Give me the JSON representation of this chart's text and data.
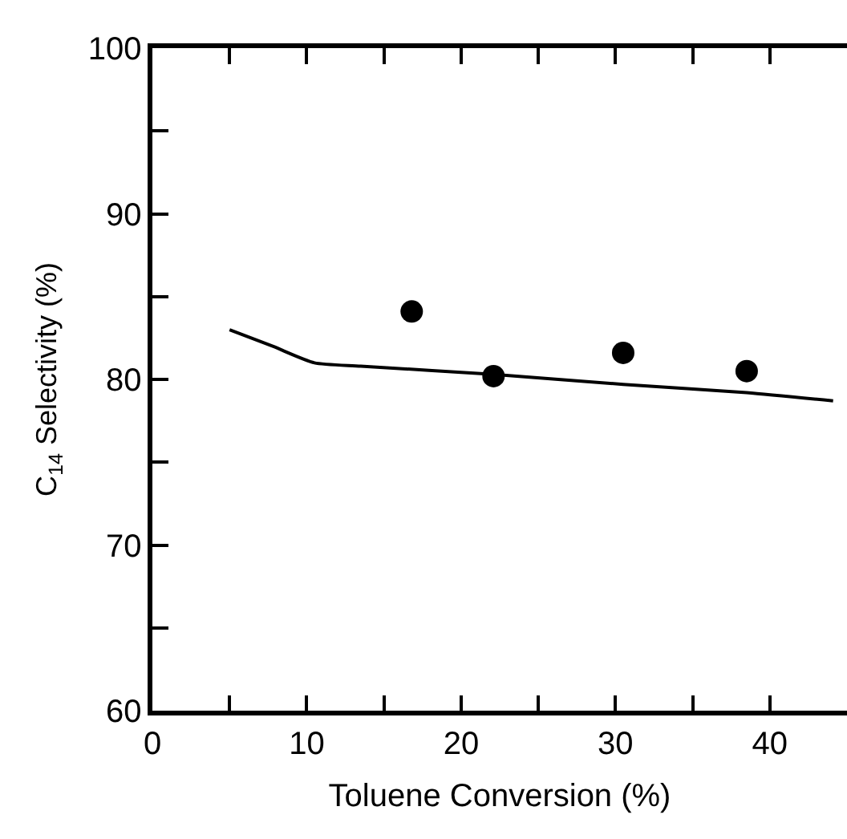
{
  "chart_data": {
    "type": "scatter",
    "xlabel": "Toluene Conversion (%)",
    "ylabel": "C$_{14}$ Selectivity (%)",
    "xlim": [
      0,
      45
    ],
    "ylim": [
      60,
      100
    ],
    "xticks": [
      0,
      {
        "value": 5,
        "label": null
      },
      10,
      {
        "value": 15,
        "label": null
      },
      20,
      {
        "value": 25,
        "label": null
      },
      30,
      {
        "value": 35,
        "label": null
      },
      40
    ],
    "yticks": [
      60,
      {
        "value": 65,
        "label": null
      },
      70,
      {
        "value": 75,
        "label": null
      },
      80,
      {
        "value": 85,
        "label": null
      },
      90,
      {
        "value": 95,
        "label": null
      },
      100
    ],
    "series": [
      {
        "color": "#000000",
        "marker": "circle",
        "x": [
          16.8,
          22.1,
          30.5,
          38.5
        ],
        "values": [
          84.1,
          80.2,
          81.6,
          80.5
        ]
      },
      {
        "type": "line",
        "color": "#000000",
        "line_style": "solid",
        "marker": "none",
        "x": [
          5.0,
          7.8,
          10.5,
          13.5,
          22.1,
          30.5,
          38.5,
          44.1
        ],
        "values": [
          83.0,
          82.0,
          81.0,
          80.8,
          80.3,
          79.7,
          79.2,
          78.7
        ]
      }
    ]
  }
}
